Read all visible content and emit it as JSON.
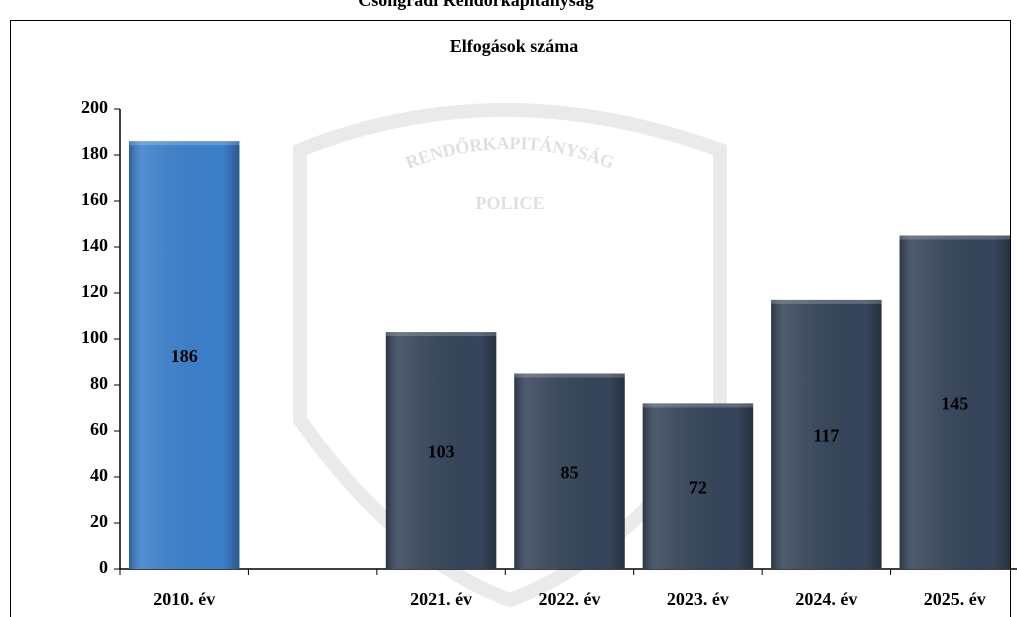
{
  "chart_data": {
    "type": "bar",
    "header": "Csongrádi Rendőrkapitányság",
    "title": "Elfogások száma",
    "watermark": [
      "RENDŐRKAPITÁNYSÁG",
      "POLICE"
    ],
    "categories": [
      "2010. év",
      null,
      "2021. év",
      "2022. év",
      "2023. év",
      "2024. év",
      "2025. év"
    ],
    "values": [
      186,
      null,
      103,
      85,
      72,
      117,
      145
    ],
    "colors": [
      "#3b7fcb",
      "#36455a",
      "#36455a",
      "#36455a",
      "#36455a",
      "#36455a",
      "#36455a"
    ],
    "ylim": [
      0,
      200
    ],
    "yticks": [
      0,
      20,
      40,
      60,
      80,
      100,
      120,
      140,
      160,
      180,
      200
    ],
    "grid": false,
    "value_labels_inside": true
  }
}
